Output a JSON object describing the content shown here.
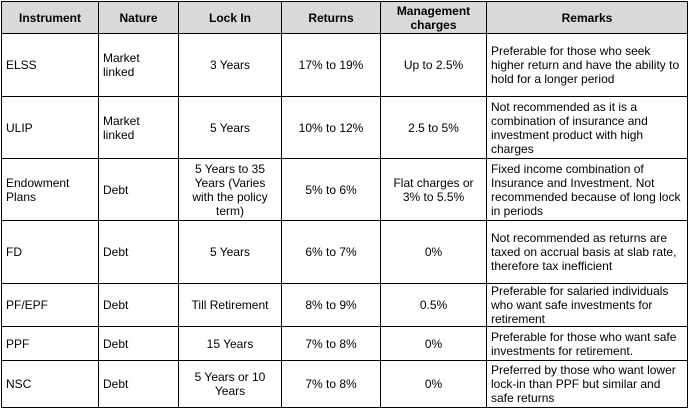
{
  "table": {
    "headers": {
      "instrument": "Instrument",
      "nature": "Nature",
      "lock_in": "Lock In",
      "returns": "Returns",
      "management_charges": "Management charges",
      "remarks": "Remarks"
    },
    "rows": [
      {
        "instrument": "ELSS",
        "nature": "Market linked",
        "lock_in": "3 Years",
        "returns": "17% to 19%",
        "charges": "Up to 2.5%",
        "remarks": "Preferable for those who seek higher return and have the ability to hold for a longer period"
      },
      {
        "instrument": "ULIP",
        "nature": "Market linked",
        "lock_in": "5 Years",
        "returns": "10% to 12%",
        "charges": "2.5 to 5%",
        "remarks": "Not recommended as it is a combination of insurance and investment product with high charges"
      },
      {
        "instrument": "Endowment Plans",
        "nature": "Debt",
        "lock_in": "5 Years to 35 Years (Varies with the policy term)",
        "returns": "5% to 6%",
        "charges": "Flat charges or 3% to 5.5%",
        "remarks": "Fixed income combination of Insurance and Investment. Not recommended because of long lock in periods"
      },
      {
        "instrument": "FD",
        "nature": "Debt",
        "lock_in": "5 Years",
        "returns": "6% to 7%",
        "charges": "0%",
        "remarks": "Not recommended as returns are taxed on accrual basis at slab rate, therefore tax inefficient"
      },
      {
        "instrument": "PF/EPF",
        "nature": "Debt",
        "lock_in": "Till Retirement",
        "returns": "8% to 9%",
        "charges": "0.5%",
        "remarks": "Preferable for salaried individuals who want safe investments for retirement"
      },
      {
        "instrument": "PPF",
        "nature": "Debt",
        "lock_in": "15 Years",
        "returns": "7% to 8%",
        "charges": "0%",
        "remarks": "Preferable for those who want safe investments for retirement."
      },
      {
        "instrument": "NSC",
        "nature": "Debt",
        "lock_in": "5 Years or 10 Years",
        "returns": "7% to 8%",
        "charges": "0%",
        "remarks": "Preferred by those who want lower lock-in than PPF but similar and safe returns"
      }
    ]
  },
  "colors": {
    "header_background": "#d9d9d9",
    "border": "#000000",
    "text": "#000000"
  }
}
